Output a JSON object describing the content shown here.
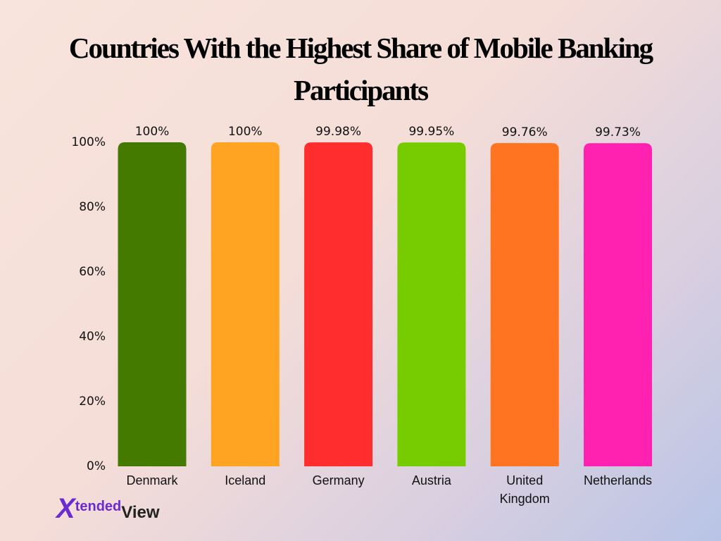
{
  "chart_data": {
    "type": "bar",
    "title": "Countries With the Highest Share of Mobile Banking Participants",
    "categories": [
      "Denmark",
      "Iceland",
      "Germany",
      "Austria",
      "United Kingdom",
      "Netherlands"
    ],
    "values": [
      100,
      100,
      99.98,
      99.95,
      99.76,
      99.73
    ],
    "value_labels": [
      "100%",
      "100%",
      "99.98%",
      "99.95%",
      "99.76%",
      "99.73%"
    ],
    "colors": [
      "#457a00",
      "#ffa322",
      "#ff2d2d",
      "#76cc00",
      "#ff7420",
      "#ff22b0"
    ],
    "ylim": [
      0,
      100
    ],
    "yticks": [
      {
        "value": 0,
        "label": "0%"
      },
      {
        "value": 20,
        "label": "20%"
      },
      {
        "value": 40,
        "label": "40%"
      },
      {
        "value": 60,
        "label": "60%"
      },
      {
        "value": 80,
        "label": "80%"
      },
      {
        "value": 100,
        "label": "100%"
      }
    ],
    "grid": false
  },
  "logo": [
    "X",
    "tended",
    "View"
  ]
}
